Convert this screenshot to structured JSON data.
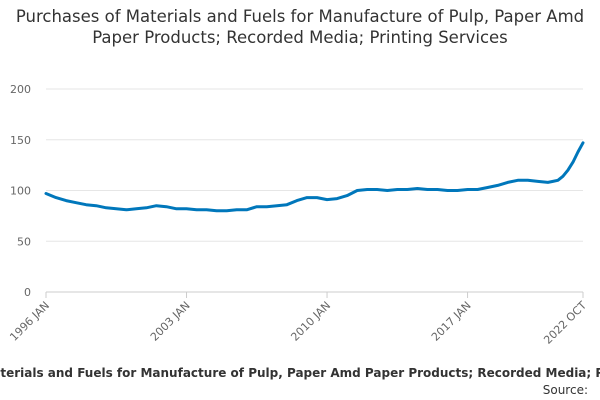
{
  "chart_data": {
    "type": "line",
    "title": "Purchases of Materials and Fuels for Manufacture of Pulp, Paper Amd Paper Products; Recorded Media; Printing Services",
    "xlabel": "",
    "ylabel": "",
    "ylim": [
      0,
      200
    ],
    "y_ticks": [
      "0",
      "50",
      "100",
      "150",
      "200"
    ],
    "x_ticks": [
      "1996 JAN",
      "2003 JAN",
      "2010 JAN",
      "2017 JAN",
      "2022 OCT"
    ],
    "x_range": [
      "1996-01",
      "2022-10"
    ],
    "grid": true,
    "legend_position": "bottom",
    "series": [
      {
        "name": "Purchases of Materials and Fuels for Manufacture of Pulp, Paper Amd Paper Products; Recorded Media; Printing Services",
        "color": "#0077bb",
        "x": [
          "1996-01",
          "1996-07",
          "1997-01",
          "1997-07",
          "1998-01",
          "1998-07",
          "1999-01",
          "1999-07",
          "2000-01",
          "2000-07",
          "2001-01",
          "2001-07",
          "2002-01",
          "2002-07",
          "2003-01",
          "2003-07",
          "2004-01",
          "2004-07",
          "2005-01",
          "2005-07",
          "2006-01",
          "2006-07",
          "2007-01",
          "2007-07",
          "2008-01",
          "2008-07",
          "2009-01",
          "2009-07",
          "2010-01",
          "2010-07",
          "2011-01",
          "2011-07",
          "2012-01",
          "2012-07",
          "2013-01",
          "2013-07",
          "2014-01",
          "2014-07",
          "2015-01",
          "2015-07",
          "2016-01",
          "2016-07",
          "2017-01",
          "2017-07",
          "2018-01",
          "2018-07",
          "2019-01",
          "2019-07",
          "2020-01",
          "2020-07",
          "2021-01",
          "2021-04",
          "2021-07",
          "2021-10",
          "2022-01",
          "2022-04",
          "2022-07",
          "2022-10"
        ],
        "values": [
          97,
          93,
          90,
          88,
          86,
          85,
          83,
          82,
          81,
          82,
          83,
          85,
          84,
          82,
          82,
          81,
          81,
          80,
          80,
          81,
          81,
          84,
          84,
          85,
          86,
          90,
          93,
          93,
          91,
          92,
          95,
          100,
          101,
          101,
          100,
          101,
          101,
          102,
          101,
          101,
          100,
          100,
          101,
          101,
          103,
          105,
          108,
          110,
          110,
          109,
          108,
          109,
          110,
          114,
          120,
          128,
          138,
          147
        ]
      }
    ],
    "source": "Source:"
  }
}
